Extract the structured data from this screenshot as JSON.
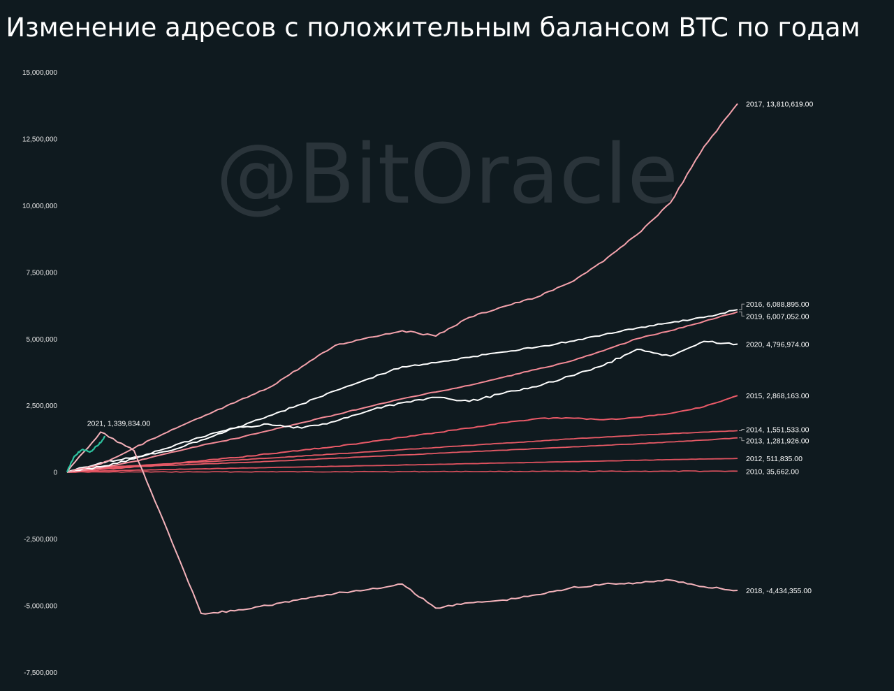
{
  "title": "Изменение адресов с положительным балансом BTC по годам",
  "watermark": "@BitOracle",
  "colors": {
    "background": "#0f1a1f",
    "2010": "#e0525f",
    "2012": "#e0525f",
    "2013": "#e85a66",
    "2014": "#e85a66",
    "2015": "#ea5a68",
    "2016": "#ffffff",
    "2017": "#f5a3ad",
    "2018": "#f5b3bb",
    "2019": "#f48a96",
    "2020": "#ffffff",
    "2021": "#2ec4a0"
  },
  "chart_data": {
    "type": "line",
    "title": "Изменение адресов с положительным балансом BTC по годам",
    "xlabel": "",
    "ylabel": "",
    "ylim": [
      -7500000,
      15000000
    ],
    "yticks": [
      15000000,
      12500000,
      10000000,
      7500000,
      5000000,
      2500000,
      0,
      -2500000,
      -5000000,
      -7500000
    ],
    "ytick_labels": [
      "15,000,000",
      "12,500,000",
      "10,000,000",
      "7,500,000",
      "5,000,000",
      "2,500,000",
      "0",
      "-2,500,000",
      "-5,000,000",
      "-7,500,000"
    ],
    "x": [
      0,
      5,
      10,
      15,
      20,
      25,
      30,
      35,
      40,
      45,
      50,
      55,
      60,
      65,
      70,
      75,
      80,
      85,
      90,
      95,
      100
    ],
    "grid": false,
    "legend": "end-of-line labels",
    "series": [
      {
        "name": "2010",
        "label": "2010, 35,662.00",
        "values": [
          0,
          1800,
          3600,
          5300,
          7100,
          8900,
          10700,
          12500,
          14300,
          16000,
          17800,
          19600,
          21400,
          23200,
          25000,
          26700,
          28500,
          30300,
          32100,
          33900,
          35662
        ]
      },
      {
        "name": "2012",
        "label": "2012, 511,835.00",
        "values": [
          0,
          40000,
          70000,
          95000,
          120000,
          145000,
          170000,
          190000,
          215000,
          240000,
          265000,
          290000,
          315000,
          340000,
          365000,
          390000,
          415000,
          440000,
          465000,
          490000,
          511835
        ]
      },
      {
        "name": "2013",
        "label": "2013, 1,281,926.00",
        "values": [
          0,
          150000,
          200000,
          250000,
          300000,
          350000,
          400000,
          460000,
          520000,
          580000,
          640000,
          700000,
          760000,
          820000,
          880000,
          940000,
          1000000,
          1060000,
          1130000,
          1200000,
          1281926
        ]
      },
      {
        "name": "2014",
        "label": "2014, 1,551,533.00",
        "values": [
          0,
          180000,
          240000,
          310000,
          380000,
          450000,
          520000,
          600000,
          680000,
          760000,
          840000,
          920000,
          1000000,
          1080000,
          1160000,
          1240000,
          1310000,
          1380000,
          1440000,
          1500000,
          1551533
        ]
      },
      {
        "name": "2015",
        "label": "2015, 2,868,163.00",
        "values": [
          0,
          100000,
          200000,
          300000,
          420000,
          540000,
          680000,
          820000,
          960000,
          1120000,
          1300000,
          1480000,
          1650000,
          1850000,
          2000000,
          2030000,
          1960000,
          2050000,
          2200000,
          2450000,
          2868163
        ]
      },
      {
        "name": "2016",
        "label": "2016, 6,088,895.00",
        "values": [
          0,
          350000,
          560000,
          780000,
          1200000,
          1650000,
          2100000,
          2550000,
          3050000,
          3500000,
          3950000,
          4100000,
          4300000,
          4500000,
          4680000,
          4900000,
          5150000,
          5400000,
          5600000,
          5800000,
          6088895
        ]
      },
      {
        "name": "2017",
        "label": "2017, 13,810,619.00",
        "values": [
          0,
          300000,
          900000,
          1500000,
          2050000,
          2600000,
          3150000,
          3950000,
          4750000,
          5050000,
          5300000,
          5100000,
          5800000,
          6200000,
          6550000,
          7100000,
          7900000,
          8900000,
          10100000,
          12200000,
          13810619
        ]
      },
      {
        "name": "2018",
        "label": "2018, -4,434,355.00",
        "values": [
          0,
          1500000,
          800000,
          -2200000,
          -5300000,
          -5200000,
          -5000000,
          -4750000,
          -4550000,
          -4400000,
          -4200000,
          -5100000,
          -4900000,
          -4800000,
          -4600000,
          -4350000,
          -4200000,
          -4150000,
          -4050000,
          -4300000,
          -4434355
        ]
      },
      {
        "name": "2019",
        "label": "2019, 6,007,052.00",
        "values": [
          0,
          150000,
          400000,
          700000,
          1000000,
          1250000,
          1550000,
          1850000,
          2150000,
          2450000,
          2750000,
          3000000,
          3250000,
          3550000,
          3850000,
          4150000,
          4550000,
          5000000,
          5300000,
          5650000,
          6007052
        ]
      },
      {
        "name": "2020",
        "label": "2020, 4,796,974.00",
        "values": [
          0,
          200000,
          500000,
          900000,
          1300000,
          1650000,
          1800000,
          1650000,
          1900000,
          2300000,
          2600000,
          2800000,
          2650000,
          2950000,
          3200000,
          3600000,
          4000000,
          4600000,
          4350000,
          4900000,
          4796974
        ]
      },
      {
        "name": "2021",
        "label": "2021, 1,339,834.00",
        "values": [
          0,
          600000,
          850000,
          750000,
          1000000,
          1339834
        ],
        "x": [
          0,
          1.1,
          2.3,
          3.4,
          4.6,
          5.7
        ]
      }
    ]
  }
}
